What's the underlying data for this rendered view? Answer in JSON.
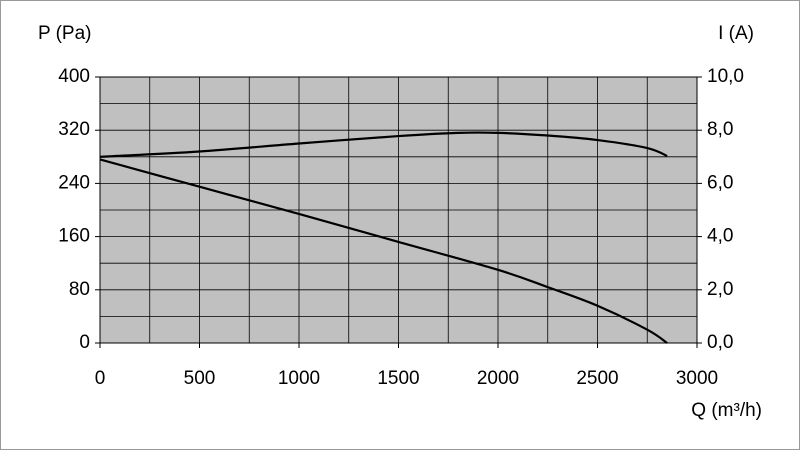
{
  "chart_data": {
    "type": "line",
    "y_label": "P (Pa)",
    "y2_label": "I (A)",
    "x_label": "Q (m³/h)",
    "xlim": [
      0,
      3000
    ],
    "xticks": [
      0,
      500,
      1000,
      1500,
      2000,
      2500,
      3000
    ],
    "ylim": [
      0,
      400
    ],
    "yticks": [
      0,
      80,
      160,
      240,
      320,
      400
    ],
    "y2lim": [
      0,
      10
    ],
    "y2ticks": [
      {
        "value": 0,
        "label": "0,0"
      },
      {
        "value": 2,
        "label": "2,0"
      },
      {
        "value": 4,
        "label": "4,0"
      },
      {
        "value": 6,
        "label": "6,0"
      },
      {
        "value": 8,
        "label": "8,0"
      },
      {
        "value": 10,
        "label": "10,0"
      }
    ],
    "x_grid": [
      0,
      250,
      500,
      750,
      1000,
      1250,
      1500,
      1750,
      2000,
      2250,
      2500,
      2750,
      3000
    ],
    "y_grid": [
      0,
      40,
      80,
      120,
      160,
      200,
      240,
      280,
      320,
      360,
      400
    ],
    "grid": true,
    "plot_background": "#c0c0c0",
    "grid_color": "#000000",
    "series": [
      {
        "color": "#000000",
        "x": [
          0,
          500,
          1000,
          1500,
          2000,
          2250,
          2500,
          2750,
          2850
        ],
        "values": [
          276,
          235,
          194,
          152,
          110,
          84,
          56,
          20,
          0
        ]
      },
      {
        "color": "#000000",
        "axis": "y2",
        "x": [
          0,
          500,
          1000,
          1500,
          1800,
          2000,
          2250,
          2500,
          2750,
          2850
        ],
        "values": [
          7.0,
          7.2,
          7.5,
          7.78,
          7.9,
          7.9,
          7.8,
          7.63,
          7.33,
          7.03
        ]
      }
    ]
  }
}
